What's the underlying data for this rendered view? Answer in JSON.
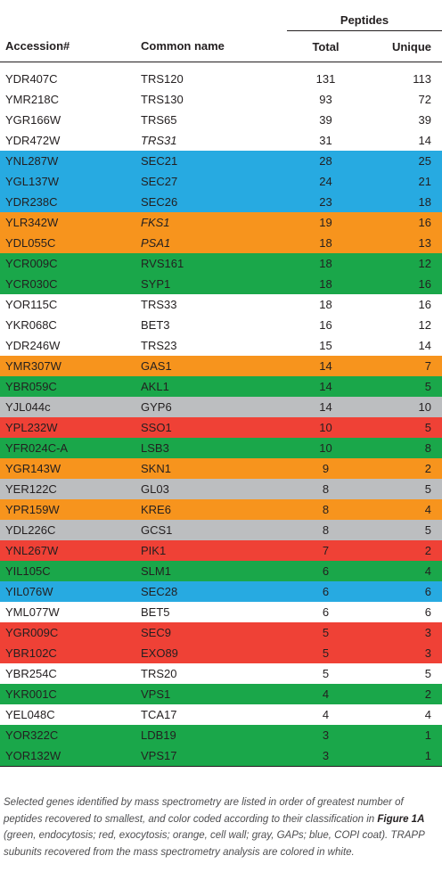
{
  "header": {
    "group_label": "Peptides",
    "col_accession": "Accession#",
    "col_common_name": "Common name",
    "col_total": "Total",
    "col_unique": "Unique"
  },
  "colors": {
    "blue": "#27aae1",
    "orange": "#f7941d",
    "green": "#1aa74a",
    "gray": "#bcbec0",
    "red": "#ef4136",
    "white": "#ffffff"
  },
  "rows": [
    {
      "accession": "YDR407C",
      "name": "TRS120",
      "total": "131",
      "unique": "113",
      "color": "white",
      "italic": false
    },
    {
      "accession": "YMR218C",
      "name": "TRS130",
      "total": "93",
      "unique": "72",
      "color": "white",
      "italic": false
    },
    {
      "accession": "YGR166W",
      "name": "TRS65",
      "total": "39",
      "unique": "39",
      "color": "white",
      "italic": false
    },
    {
      "accession": "YDR472W",
      "name": "TRS31",
      "total": "31",
      "unique": "14",
      "color": "white",
      "italic": true
    },
    {
      "accession": "YNL287W",
      "name": "SEC21",
      "total": "28",
      "unique": "25",
      "color": "blue",
      "italic": false
    },
    {
      "accession": "YGL137W",
      "name": "SEC27",
      "total": "24",
      "unique": "21",
      "color": "blue",
      "italic": false
    },
    {
      "accession": "YDR238C",
      "name": "SEC26",
      "total": "23",
      "unique": "18",
      "color": "blue",
      "italic": false
    },
    {
      "accession": "YLR342W",
      "name": "FKS1",
      "total": "19",
      "unique": "16",
      "color": "orange",
      "italic": true
    },
    {
      "accession": "YDL055C",
      "name": "PSA1",
      "total": "18",
      "unique": "13",
      "color": "orange",
      "italic": true
    },
    {
      "accession": "YCR009C",
      "name": "RVS161",
      "total": "18",
      "unique": "12",
      "color": "green",
      "italic": false
    },
    {
      "accession": "YCR030C",
      "name": "SYP1",
      "total": "18",
      "unique": "16",
      "color": "green",
      "italic": false
    },
    {
      "accession": "YOR115C",
      "name": "TRS33",
      "total": "18",
      "unique": "16",
      "color": "white",
      "italic": false
    },
    {
      "accession": "YKR068C",
      "name": "BET3",
      "total": "16",
      "unique": "12",
      "color": "white",
      "italic": false
    },
    {
      "accession": "YDR246W",
      "name": "TRS23",
      "total": "15",
      "unique": "14",
      "color": "white",
      "italic": false
    },
    {
      "accession": "YMR307W",
      "name": "GAS1",
      "total": "14",
      "unique": "7",
      "color": "orange",
      "italic": false
    },
    {
      "accession": "YBR059C",
      "name": "AKL1",
      "total": "14",
      "unique": "5",
      "color": "green",
      "italic": false
    },
    {
      "accession": "YJL044c",
      "name": "GYP6",
      "total": "14",
      "unique": "10",
      "color": "gray",
      "italic": false
    },
    {
      "accession": "YPL232W",
      "name": "SSO1",
      "total": "10",
      "unique": "5",
      "color": "red",
      "italic": false
    },
    {
      "accession": "YFR024C-A",
      "name": "LSB3",
      "total": "10",
      "unique": "8",
      "color": "green",
      "italic": false
    },
    {
      "accession": "YGR143W",
      "name": "SKN1",
      "total": "9",
      "unique": "2",
      "color": "orange",
      "italic": false
    },
    {
      "accession": "YER122C",
      "name": "GL03",
      "total": "8",
      "unique": "5",
      "color": "gray",
      "italic": false
    },
    {
      "accession": "YPR159W",
      "name": "KRE6",
      "total": "8",
      "unique": "4",
      "color": "orange",
      "italic": false
    },
    {
      "accession": "YDL226C",
      "name": "GCS1",
      "total": "8",
      "unique": "5",
      "color": "gray",
      "italic": false
    },
    {
      "accession": "YNL267W",
      "name": "PIK1",
      "total": "7",
      "unique": "2",
      "color": "red",
      "italic": false
    },
    {
      "accession": "YIL105C",
      "name": "SLM1",
      "total": "6",
      "unique": "4",
      "color": "green",
      "italic": false
    },
    {
      "accession": "YIL076W",
      "name": "SEC28",
      "total": "6",
      "unique": "6",
      "color": "blue",
      "italic": false
    },
    {
      "accession": "YML077W",
      "name": "BET5",
      "total": "6",
      "unique": "6",
      "color": "white",
      "italic": false
    },
    {
      "accession": "YGR009C",
      "name": "SEC9",
      "total": "5",
      "unique": "3",
      "color": "red",
      "italic": false
    },
    {
      "accession": "YBR102C",
      "name": "EXO89",
      "total": "5",
      "unique": "3",
      "color": "red",
      "italic": false
    },
    {
      "accession": "YBR254C",
      "name": "TRS20",
      "total": "5",
      "unique": "5",
      "color": "white",
      "italic": false
    },
    {
      "accession": "YKR001C",
      "name": "VPS1",
      "total": "4",
      "unique": "2",
      "color": "green",
      "italic": false
    },
    {
      "accession": "YEL048C",
      "name": "TCA17",
      "total": "4",
      "unique": "4",
      "color": "white",
      "italic": false
    },
    {
      "accession": "YOR322C",
      "name": "LDB19",
      "total": "3",
      "unique": "1",
      "color": "green",
      "italic": false
    },
    {
      "accession": "YOR132W",
      "name": "VPS17",
      "total": "3",
      "unique": "1",
      "color": "green",
      "italic": false
    }
  ],
  "footnote": {
    "part1": "Selected genes identified by mass spectrometry are listed in order of greatest number of peptides recovered to smallest, and color coded according to their classification in ",
    "figure_ref": "Figure 1A",
    "part2": " (green, endocytosis; red, exocytosis; orange, cell wall; gray, GAPs; blue, COPI coat). TRAPP subunits recovered from the mass spectrometry analysis are colored in white."
  }
}
